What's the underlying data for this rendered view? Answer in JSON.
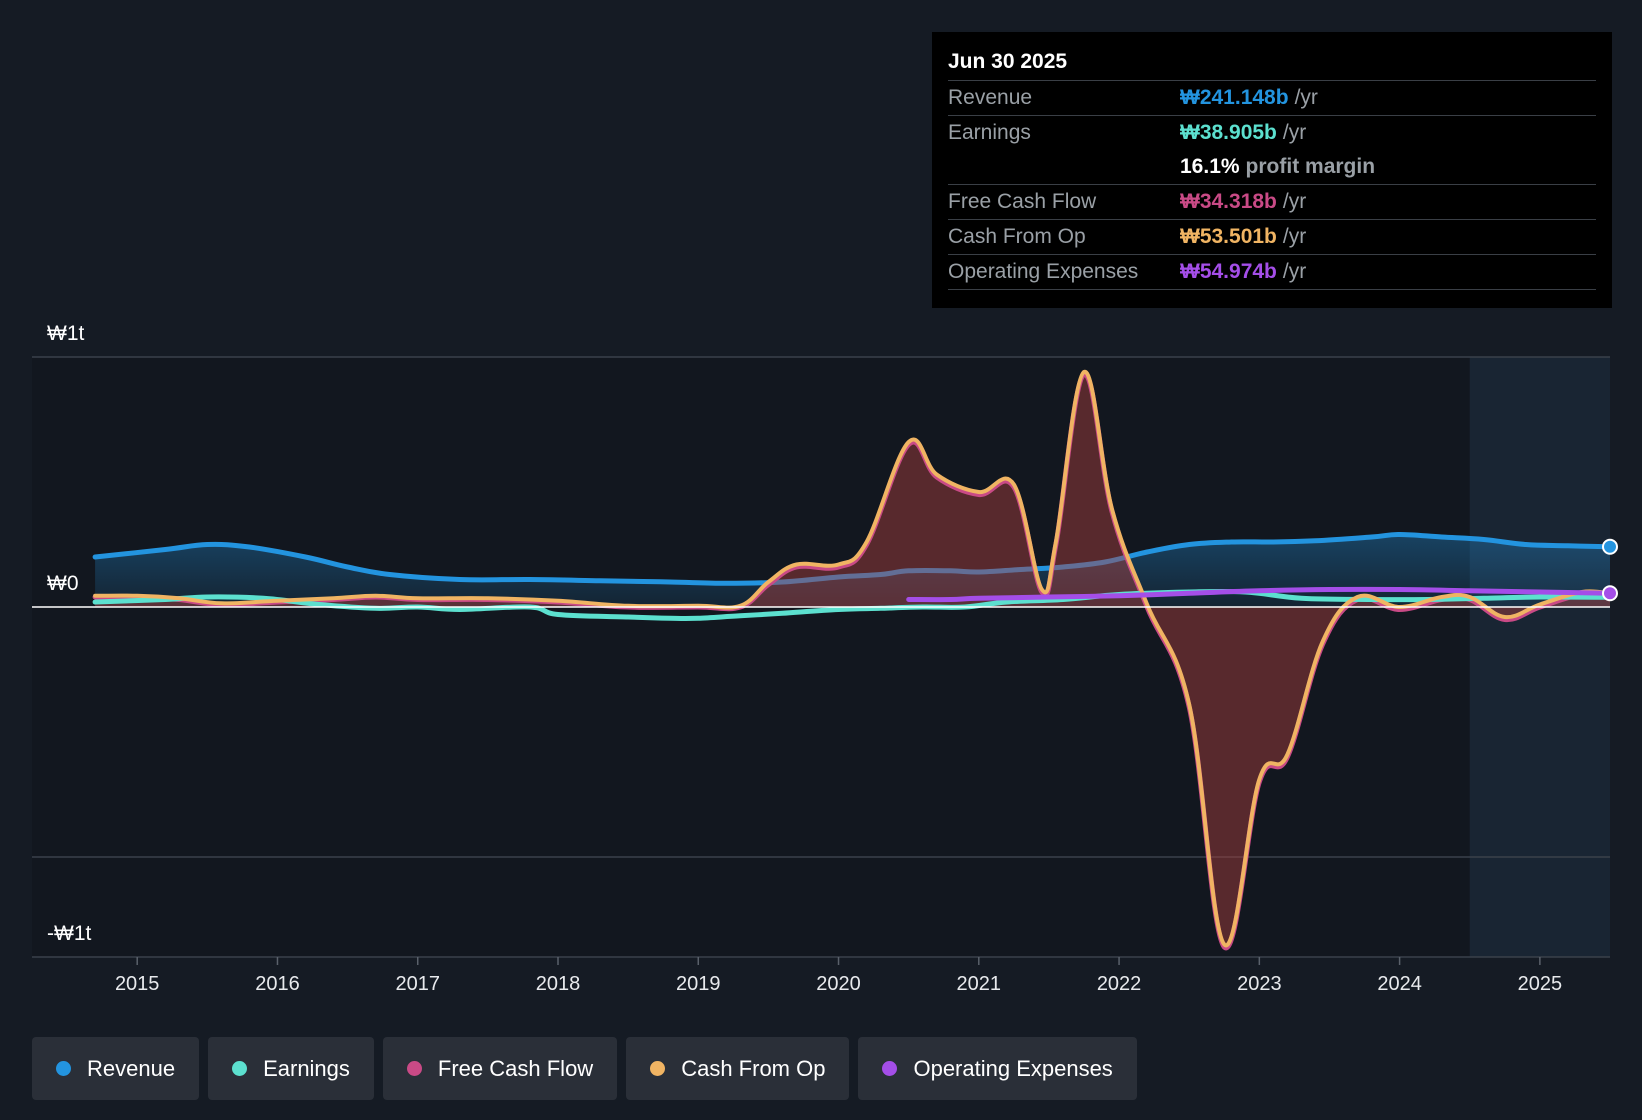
{
  "chart_data": {
    "type": "area",
    "title": "",
    "currency": "₩",
    "y_axis": {
      "labels": {
        "top": "₩1t",
        "zero": "₩0",
        "bottom": "-₩1t"
      },
      "range": [
        -1.4,
        1.0
      ],
      "unit": "trillion KRW"
    },
    "x_axis": {
      "ticks": [
        2015,
        2016,
        2017,
        2018,
        2019,
        2020,
        2021,
        2022,
        2023,
        2024,
        2025
      ],
      "range": [
        2014.25,
        2025.5
      ],
      "past_data_start": 2024.5
    },
    "series": [
      {
        "name": "Revenue",
        "color": "#2394df",
        "fill": true,
        "x": [
          2014.7,
          2015.2,
          2015.5,
          2015.8,
          2016.2,
          2016.5,
          2016.8,
          2017.3,
          2017.8,
          2018.3,
          2018.8,
          2019.2,
          2019.6,
          2020.0,
          2020.3,
          2020.5,
          2020.8,
          2021.0,
          2021.3,
          2021.6,
          2021.9,
          2022.2,
          2022.5,
          2022.8,
          2023.1,
          2023.4,
          2023.8,
          2024.0,
          2024.3,
          2024.6,
          2024.9,
          2025.2,
          2025.5
        ],
        "values": [
          0.2,
          0.23,
          0.25,
          0.24,
          0.2,
          0.16,
          0.13,
          0.11,
          0.11,
          0.105,
          0.1,
          0.095,
          0.1,
          0.12,
          0.13,
          0.145,
          0.145,
          0.14,
          0.15,
          0.16,
          0.18,
          0.22,
          0.25,
          0.26,
          0.26,
          0.265,
          0.28,
          0.29,
          0.28,
          0.27,
          0.25,
          0.245,
          0.241
        ]
      },
      {
        "name": "Earnings",
        "color": "#5ce0cf",
        "fill": false,
        "x": [
          2014.7,
          2015.2,
          2015.5,
          2015.9,
          2016.3,
          2016.7,
          2017.0,
          2017.3,
          2017.8,
          2018.0,
          2018.5,
          2018.8,
          2019.0,
          2019.3,
          2019.6,
          2020.0,
          2020.3,
          2020.6,
          2020.9,
          2021.2,
          2021.6,
          2022.0,
          2022.5,
          2022.9,
          2023.3,
          2023.8,
          2024.2,
          2024.6,
          2025.0,
          2025.5
        ],
        "values": [
          0.02,
          0.03,
          0.04,
          0.035,
          0.01,
          -0.005,
          0.0,
          -0.01,
          0.0,
          -0.03,
          -0.04,
          -0.045,
          -0.045,
          -0.035,
          -0.025,
          -0.01,
          -0.005,
          0.0,
          0.0,
          0.02,
          0.03,
          0.05,
          0.06,
          0.06,
          0.035,
          0.03,
          0.03,
          0.035,
          0.04,
          0.039
        ]
      },
      {
        "name": "Free Cash Flow",
        "color": "#c94a86",
        "fill": true,
        "x": [
          2014.7,
          2015.0,
          2015.3,
          2015.6,
          2016.0,
          2016.4,
          2016.7,
          2017.0,
          2017.5,
          2018.0,
          2018.5,
          2019.0,
          2019.3,
          2019.5,
          2019.7,
          2020.0,
          2020.2,
          2020.5,
          2020.7,
          2021.0,
          2021.25,
          2021.45,
          2021.55,
          2021.75,
          2021.95,
          2022.2,
          2022.5,
          2022.75,
          2023.0,
          2023.2,
          2023.45,
          2023.7,
          2024.0,
          2024.3,
          2024.5,
          2024.75,
          2025.0,
          2025.3,
          2025.5
        ],
        "values": [
          0.04,
          0.04,
          0.03,
          0.01,
          0.02,
          0.03,
          0.04,
          0.03,
          0.03,
          0.02,
          0.0,
          0.0,
          0.0,
          0.09,
          0.16,
          0.16,
          0.25,
          0.65,
          0.52,
          0.45,
          0.48,
          0.06,
          0.25,
          0.93,
          0.38,
          0.0,
          -0.4,
          -1.36,
          -0.7,
          -0.6,
          -0.15,
          0.03,
          -0.01,
          0.03,
          0.03,
          -0.05,
          0.0,
          0.05,
          0.034
        ]
      },
      {
        "name": "Cash From Op",
        "color": "#f0b463",
        "fill": false,
        "x": [
          2014.7,
          2015.0,
          2015.3,
          2015.6,
          2016.0,
          2016.4,
          2016.7,
          2017.0,
          2017.5,
          2018.0,
          2018.5,
          2019.0,
          2019.3,
          2019.5,
          2019.7,
          2020.0,
          2020.2,
          2020.5,
          2020.7,
          2021.0,
          2021.25,
          2021.45,
          2021.55,
          2021.75,
          2021.95,
          2022.2,
          2022.5,
          2022.75,
          2023.0,
          2023.2,
          2023.45,
          2023.7,
          2024.0,
          2024.3,
          2024.5,
          2024.75,
          2025.0,
          2025.3,
          2025.5
        ],
        "values": [
          0.045,
          0.045,
          0.035,
          0.015,
          0.025,
          0.035,
          0.045,
          0.035,
          0.035,
          0.025,
          0.005,
          0.005,
          0.005,
          0.1,
          0.17,
          0.17,
          0.26,
          0.66,
          0.53,
          0.46,
          0.49,
          0.07,
          0.26,
          0.94,
          0.39,
          0.01,
          -0.39,
          -1.35,
          -0.69,
          -0.59,
          -0.14,
          0.04,
          0.0,
          0.04,
          0.04,
          -0.04,
          0.01,
          0.06,
          0.054
        ]
      },
      {
        "name": "Operating Expenses",
        "color": "#a44ee8",
        "fill": false,
        "x": [
          2020.5,
          2020.8,
          2021.0,
          2021.5,
          2022.0,
          2022.5,
          2023.0,
          2023.5,
          2024.0,
          2024.5,
          2025.0,
          2025.5
        ],
        "values": [
          0.03,
          0.03,
          0.035,
          0.04,
          0.045,
          0.055,
          0.065,
          0.07,
          0.07,
          0.065,
          0.06,
          0.055
        ]
      }
    ],
    "end_markers": [
      {
        "series": "Revenue",
        "value": 0.241
      },
      {
        "series": "Operating Expenses",
        "value": 0.055
      }
    ]
  },
  "tooltip": {
    "date": "Jun 30 2025",
    "rows": [
      {
        "label": "Revenue",
        "value": "₩241.148b",
        "unit": "/yr",
        "color": "#2394df"
      },
      {
        "label": "Earnings",
        "value": "₩38.905b",
        "unit": "/yr",
        "color": "#5ce0cf"
      },
      {
        "label": "",
        "value": "16.1%",
        "unit": "profit margin",
        "color": "#ffffff"
      },
      {
        "label": "Free Cash Flow",
        "value": "₩34.318b",
        "unit": "/yr",
        "color": "#c94a86"
      },
      {
        "label": "Cash From Op",
        "value": "₩53.501b",
        "unit": "/yr",
        "color": "#f0b463"
      },
      {
        "label": "Operating Expenses",
        "value": "₩54.974b",
        "unit": "/yr",
        "color": "#a44ee8"
      }
    ]
  },
  "legend": [
    {
      "label": "Revenue",
      "color": "#2394df"
    },
    {
      "label": "Earnings",
      "color": "#5ce0cf"
    },
    {
      "label": "Free Cash Flow",
      "color": "#c94a86"
    },
    {
      "label": "Cash From Op",
      "color": "#f0b463"
    },
    {
      "label": "Operating Expenses",
      "color": "#a44ee8"
    }
  ]
}
